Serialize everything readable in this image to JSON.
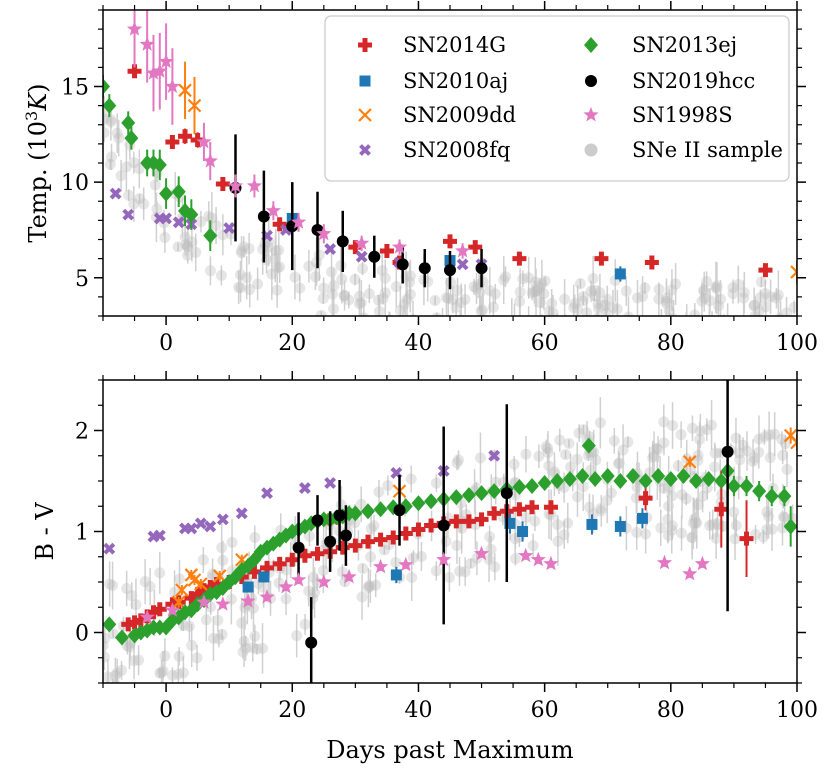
{
  "colors": {
    "SN2014G": "#d62728",
    "SN2010aj": "#1f77b4",
    "SN2009dd": "#ff7f0e",
    "SN2008fq": "#9467bd",
    "SN2013ej": "#2ca02c",
    "SN2019hcc": "#000000",
    "SN1998S": "#e377c2",
    "sample": "#aaaaaa"
  },
  "legend": {
    "col1": [
      "SN2014G",
      "SN2010aj",
      "SN2009dd",
      "SN2008fq"
    ],
    "col2": [
      "SN2013ej",
      "SN2019hcc",
      "SN1998S",
      "SNe II sample"
    ],
    "markers": {
      "SN2014G": "plus",
      "SN2010aj": "square",
      "SN2009dd": "x",
      "SN2008fq": "xthick",
      "SN2013ej": "diamond",
      "SN2019hcc": "circle",
      "SN1998S": "star",
      "SNe II sample": "circle-gray"
    },
    "position": "top-right"
  },
  "chart_data": [
    {
      "type": "scatter",
      "panel": "top",
      "xlabel": "",
      "ylabel": "Temp. (10³K)",
      "ylabel_main": "Temp. (10",
      "ylabel_sup": "3",
      "ylabel_unit": "K",
      "ylabel_close": ")",
      "xlim": [
        -10,
        100
      ],
      "ylim": [
        3,
        19
      ],
      "xticks": [
        0,
        20,
        40,
        60,
        80,
        100
      ],
      "yticks": [
        5,
        10,
        15
      ],
      "series": [
        {
          "name": "SN2014G",
          "marker": "plus",
          "x": [
            -5,
            1,
            3,
            5,
            9,
            18,
            30,
            35,
            37,
            45,
            49,
            56,
            69,
            77,
            95
          ],
          "y": [
            15.8,
            12.1,
            12.4,
            12.2,
            9.9,
            7.8,
            6.6,
            6.4,
            5.8,
            6.9,
            6.6,
            6.0,
            6.0,
            5.8,
            5.4
          ],
          "err": [
            0.3,
            0.3,
            0.4,
            0.4,
            0.3,
            0.3,
            0.3,
            0.3,
            0.3,
            0.3,
            0.3,
            0.3,
            0.3,
            0.3,
            0.3
          ]
        },
        {
          "name": "SN2010aj",
          "marker": "square",
          "x": [
            20,
            45,
            72
          ],
          "y": [
            8.1,
            5.9,
            5.2
          ],
          "err": [
            0.3,
            0.3,
            0.4
          ]
        },
        {
          "name": "SN2009dd",
          "marker": "x",
          "x": [
            3,
            4.5,
            100
          ],
          "y": [
            14.8,
            14.0,
            5.3
          ],
          "err": [
            1.5,
            1.5,
            0.6
          ]
        },
        {
          "name": "SN2008fq",
          "marker": "xthick",
          "x": [
            -8,
            -6,
            -1,
            0,
            2,
            4,
            10,
            16,
            19,
            26,
            31,
            37,
            47,
            50
          ],
          "y": [
            9.4,
            8.3,
            8.1,
            8.1,
            7.9,
            7.8,
            7.6,
            7.2,
            7.5,
            6.5,
            6.1,
            5.8,
            5.7,
            5.7
          ],
          "err": [
            0,
            0,
            0,
            0,
            0,
            0,
            0,
            0,
            0,
            0,
            0,
            0,
            0,
            0
          ]
        },
        {
          "name": "SN2013ej",
          "marker": "diamond",
          "x": [
            -10,
            -9,
            -6,
            -5.5,
            -3,
            -2,
            -1,
            0,
            2,
            3,
            4,
            7
          ],
          "y": [
            15.0,
            14.0,
            13.1,
            12.3,
            11.0,
            11.0,
            10.9,
            9.4,
            9.5,
            8.5,
            8.3,
            7.2
          ],
          "err": [
            0.6,
            0.6,
            0.6,
            0.6,
            0.7,
            0.7,
            0.8,
            0.8,
            0.8,
            0.8,
            0.8,
            0.8
          ]
        },
        {
          "name": "SN2019hcc",
          "marker": "circle",
          "x": [
            11,
            15.5,
            20,
            24,
            28,
            33,
            37.5,
            41,
            45,
            50
          ],
          "y": [
            9.7,
            8.2,
            7.7,
            7.5,
            6.9,
            6.1,
            5.7,
            5.5,
            5.4,
            5.5
          ],
          "err": [
            2.8,
            2.4,
            2.3,
            2.0,
            1.6,
            1.1,
            1.0,
            1.0,
            1.0,
            1.0
          ]
        },
        {
          "name": "SN1998S",
          "marker": "star",
          "x": [
            -5,
            -3,
            -2,
            -1,
            0,
            1,
            6,
            7,
            11,
            14,
            17,
            21,
            25,
            31,
            37,
            47
          ],
          "y": [
            18.0,
            17.2,
            15.7,
            15.8,
            16.3,
            15.0,
            12.1,
            11.1,
            9.8,
            9.8,
            8.5,
            7.9,
            7.3,
            6.8,
            6.6,
            6.4
          ],
          "err": [
            2.0,
            2.0,
            2.0,
            2.0,
            2.0,
            2.0,
            1.0,
            1.0,
            0.6,
            0.6,
            0.5,
            0.5,
            0.5,
            0.4,
            0.4,
            0.4
          ]
        }
      ]
    },
    {
      "type": "scatter",
      "panel": "bottom",
      "xlabel": "Days past Maximum",
      "ylabel": "B - V",
      "xlim": [
        -10,
        100
      ],
      "ylim": [
        -0.5,
        2.5
      ],
      "xticks": [
        0,
        20,
        40,
        60,
        80,
        100
      ],
      "yticks": [
        0,
        1,
        2
      ],
      "series": [
        {
          "name": "SN2014G",
          "marker": "plus",
          "x": [
            -6,
            -5,
            -4,
            -3,
            -2,
            -1,
            1,
            2,
            4,
            5,
            6,
            7,
            8,
            10,
            12,
            14,
            16,
            18,
            20,
            22,
            24,
            26,
            28,
            30,
            32,
            34,
            36,
            38,
            40,
            42,
            44,
            46,
            48,
            50,
            52,
            54,
            56,
            58,
            61,
            76,
            88,
            92
          ],
          "y": [
            0.08,
            0.1,
            0.12,
            0.16,
            0.2,
            0.23,
            0.28,
            0.3,
            0.34,
            0.38,
            0.42,
            0.45,
            0.48,
            0.5,
            0.55,
            0.6,
            0.64,
            0.68,
            0.72,
            0.76,
            0.78,
            0.8,
            0.84,
            0.86,
            0.9,
            0.92,
            0.94,
            0.98,
            1.02,
            1.06,
            1.08,
            1.1,
            1.1,
            1.12,
            1.18,
            1.2,
            1.22,
            1.24,
            1.24,
            1.33,
            1.22,
            0.93
          ],
          "err": [
            0.03,
            0.03,
            0.03,
            0.03,
            0.03,
            0.03,
            0.03,
            0.03,
            0.03,
            0.03,
            0.03,
            0.03,
            0.03,
            0.03,
            0.03,
            0.03,
            0.03,
            0.03,
            0.03,
            0.03,
            0.03,
            0.03,
            0.03,
            0.03,
            0.03,
            0.03,
            0.05,
            0.05,
            0.05,
            0.05,
            0.05,
            0.05,
            0.05,
            0.05,
            0.05,
            0.05,
            0.05,
            0.05,
            0.06,
            0.12,
            0.38,
            0.38
          ]
        },
        {
          "name": "SN2010aj",
          "marker": "square",
          "x": [
            13,
            15.5,
            36.5,
            54.5,
            56.5,
            67.5,
            72,
            75.5
          ],
          "y": [
            0.45,
            0.55,
            0.57,
            1.08,
            1.0,
            1.07,
            1.05,
            1.13
          ],
          "err": [
            0.05,
            0.05,
            0.08,
            0.1,
            0.1,
            0.1,
            0.1,
            0.1
          ]
        },
        {
          "name": "SN2009dd",
          "marker": "x",
          "x": [
            2,
            2.5,
            4,
            4.5,
            5.5,
            8.5,
            12,
            26.5,
            37,
            83,
            99,
            100
          ],
          "y": [
            0.3,
            0.42,
            0.57,
            0.52,
            0.48,
            0.56,
            0.72,
            1.12,
            1.4,
            1.69,
            1.95,
            1.88
          ],
          "err": [
            0.05,
            0.05,
            0.05,
            0.05,
            0.05,
            0.05,
            0.05,
            0.05,
            0.08,
            0.05,
            0.08,
            0.08
          ]
        },
        {
          "name": "SN2008fq",
          "marker": "xthick",
          "x": [
            -9,
            -2,
            -1,
            3,
            4,
            5.5,
            7,
            9,
            12,
            16,
            22,
            26,
            36.5,
            44,
            52
          ],
          "y": [
            0.83,
            0.95,
            0.96,
            1.03,
            1.03,
            1.08,
            1.05,
            1.12,
            1.18,
            1.38,
            1.43,
            1.48,
            1.58,
            1.6,
            1.75
          ],
          "err": [
            0,
            0,
            0,
            0,
            0,
            0,
            0,
            0,
            0,
            0,
            0,
            0,
            0,
            0,
            0
          ]
        },
        {
          "name": "SN2013ej",
          "marker": "diamond",
          "x": [
            -9,
            -7,
            -5,
            -4,
            -3,
            -2,
            -1,
            0,
            1,
            2,
            3,
            4,
            5,
            6,
            7,
            8,
            9,
            10,
            11,
            12,
            13,
            14,
            15,
            16,
            17,
            18,
            19,
            20,
            21,
            22,
            23,
            24,
            25,
            26,
            27,
            28,
            29,
            30,
            32,
            34,
            36,
            38,
            40,
            42,
            44,
            46,
            48,
            50,
            52,
            54,
            56,
            58,
            60,
            62,
            64,
            66,
            67,
            68,
            70,
            72,
            74,
            76,
            78,
            80,
            82,
            84,
            86,
            88,
            89,
            90,
            92,
            94,
            96,
            98,
            99
          ],
          "y": [
            0.08,
            -0.05,
            -0.03,
            0.0,
            0.02,
            0.05,
            0.05,
            0.05,
            0.12,
            0.15,
            0.2,
            0.22,
            0.28,
            0.32,
            0.38,
            0.4,
            0.44,
            0.5,
            0.55,
            0.62,
            0.66,
            0.72,
            0.8,
            0.84,
            0.88,
            0.92,
            0.96,
            1.0,
            1.02,
            1.05,
            1.08,
            1.1,
            1.12,
            1.12,
            1.14,
            1.15,
            1.18,
            1.18,
            1.2,
            1.22,
            1.24,
            1.25,
            1.28,
            1.3,
            1.32,
            1.34,
            1.36,
            1.38,
            1.4,
            1.42,
            1.44,
            1.45,
            1.48,
            1.5,
            1.52,
            1.55,
            1.85,
            1.52,
            1.55,
            1.5,
            1.55,
            1.5,
            1.55,
            1.52,
            1.55,
            1.5,
            1.52,
            1.5,
            1.6,
            1.45,
            1.45,
            1.4,
            1.35,
            1.35,
            1.05
          ],
          "err": [
            0.04,
            0.04,
            0.04,
            0.04,
            0.04,
            0.04,
            0.04,
            0.04,
            0.04,
            0.04,
            0.04,
            0.04,
            0.04,
            0.04,
            0.04,
            0.04,
            0.04,
            0.04,
            0.04,
            0.04,
            0.04,
            0.04,
            0.04,
            0.04,
            0.04,
            0.04,
            0.04,
            0.04,
            0.04,
            0.04,
            0.04,
            0.04,
            0.04,
            0.04,
            0.04,
            0.04,
            0.04,
            0.04,
            0.05,
            0.05,
            0.05,
            0.05,
            0.05,
            0.05,
            0.05,
            0.05,
            0.05,
            0.05,
            0.05,
            0.05,
            0.05,
            0.05,
            0.05,
            0.05,
            0.05,
            0.05,
            0.05,
            0.05,
            0.05,
            0.05,
            0.05,
            0.05,
            0.05,
            0.05,
            0.05,
            0.05,
            0.05,
            0.05,
            0.05,
            0.1,
            0.1,
            0.1,
            0.1,
            0.1,
            0.2
          ]
        },
        {
          "name": "SN2019hcc",
          "marker": "circle",
          "x": [
            21,
            23,
            24,
            26,
            27.5,
            28.5,
            37,
            44,
            54,
            89
          ],
          "y": [
            0.84,
            -0.1,
            1.11,
            0.9,
            1.16,
            0.96,
            1.21,
            1.06,
            1.38,
            1.79
          ],
          "err": [
            0.35,
            0.45,
            0.25,
            0.3,
            0.35,
            0.3,
            0.35,
            0.98,
            0.88,
            1.58
          ]
        },
        {
          "name": "SN1998S",
          "marker": "star",
          "x": [
            -3,
            1,
            6,
            9,
            13,
            16,
            19,
            21,
            25,
            29,
            34,
            38,
            44,
            50,
            57,
            59,
            61,
            79,
            83,
            85
          ],
          "y": [
            0.15,
            0.22,
            0.3,
            0.28,
            0.31,
            0.35,
            0.45,
            0.52,
            0.5,
            0.55,
            0.65,
            0.67,
            0.72,
            0.78,
            0.76,
            0.72,
            0.68,
            0.69,
            0.58,
            0.68
          ],
          "err": [
            0.04,
            0.04,
            0.04,
            0.04,
            0.04,
            0.04,
            0.04,
            0.04,
            0.04,
            0.04,
            0.04,
            0.04,
            0.04,
            0.04,
            0.04,
            0.04,
            0.04,
            0.04,
            0.04,
            0.04
          ]
        }
      ]
    }
  ]
}
